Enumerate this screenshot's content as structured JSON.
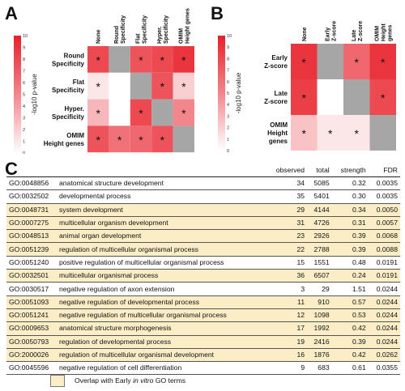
{
  "panels": {
    "a": "A",
    "b": "B",
    "c": "C"
  },
  "colors": {
    "high": "#e8202a",
    "mid": "#f2868c",
    "low": "#fde8ea",
    "none": "#ffffff",
    "gray": "#a6a6a6",
    "highlight": "#fbeec7"
  },
  "heatmap_a": {
    "cols": [
      [
        "None"
      ],
      [
        "Round",
        "Specificity"
      ],
      [
        "Flat",
        "Specificity"
      ],
      [
        "Hyper.",
        "Specificity"
      ],
      [
        "OMIM",
        "Height genes"
      ]
    ],
    "rows": [
      [
        "Round",
        "Specificity"
      ],
      [
        "Flat",
        "Specificity"
      ],
      [
        "Hyper.",
        "Specificity"
      ],
      [
        "OMIM",
        "Height genes"
      ]
    ],
    "ylabel": "-log10 p-value",
    "ticks": [
      "0",
      "1",
      "2",
      "3",
      "4",
      "5",
      "6",
      "7",
      "8",
      "9",
      "10"
    ],
    "values": [
      [
        8,
        null,
        7.5,
        8,
        9
      ],
      [
        1,
        0,
        null,
        7.5,
        2
      ],
      [
        3,
        0,
        8,
        null,
        5
      ],
      [
        7.5,
        6,
        6.5,
        7.5,
        null
      ]
    ],
    "stars": [
      [
        true,
        false,
        true,
        true,
        true
      ],
      [
        true,
        false,
        false,
        true,
        true
      ],
      [
        true,
        false,
        true,
        false,
        true
      ],
      [
        true,
        true,
        true,
        true,
        false
      ]
    ],
    "star": "*"
  },
  "heatmap_b": {
    "cols": [
      [
        "None"
      ],
      [
        "Early",
        "Z-score"
      ],
      [
        "Late",
        "Z-score"
      ],
      [
        "OMIM",
        "Height",
        "genes"
      ]
    ],
    "rows": [
      [
        "Early",
        "Z-score"
      ],
      [
        "Late",
        "Z-score"
      ],
      [
        "OMIM",
        "Height",
        "genes"
      ]
    ],
    "ylabel": "-log10 p-value",
    "ticks": [
      "0",
      "1",
      "2",
      "3",
      "4",
      "5",
      "6",
      "7",
      "8",
      "9",
      "10"
    ],
    "values": [
      [
        9,
        null,
        6.5,
        9
      ],
      [
        8.5,
        0,
        null,
        8
      ],
      [
        2.5,
        1,
        1,
        null
      ]
    ],
    "stars": [
      [
        true,
        false,
        true,
        true
      ],
      [
        true,
        false,
        false,
        true
      ],
      [
        true,
        true,
        true,
        false
      ]
    ],
    "star": "*"
  },
  "table": {
    "headers": {
      "term": "",
      "observed": "observed",
      "total": "total",
      "strength": "strength",
      "fdr": "FDR"
    },
    "rows": [
      {
        "id": "GO:0048856",
        "desc": "anatomical structure development",
        "observed": "34",
        "total": "5085",
        "strength": "0.32",
        "fdr": "0.0035",
        "hl": false
      },
      {
        "id": "GO:0032502",
        "desc": "developmental process",
        "observed": "35",
        "total": "5401",
        "strength": "0.30",
        "fdr": "0.0035",
        "hl": false
      },
      {
        "id": "GO:0048731",
        "desc": "system development",
        "observed": "29",
        "total": "4144",
        "strength": "0.34",
        "fdr": "0.0050",
        "hl": true
      },
      {
        "id": "GO:0007275",
        "desc": "multicellular organism development",
        "observed": "31",
        "total": "4726",
        "strength": "0.31",
        "fdr": "0.0057",
        "hl": true
      },
      {
        "id": "GO:0048513",
        "desc": "animal organ development",
        "observed": "23",
        "total": "2926",
        "strength": "0.39",
        "fdr": "0.0068",
        "hl": true
      },
      {
        "id": "GO:0051239",
        "desc": "regulation of multicellular organismal process",
        "observed": "22",
        "total": "2788",
        "strength": "0.39",
        "fdr": "0.0088",
        "hl": true
      },
      {
        "id": "GO:0051240",
        "desc": "positive regulation of multicellular organismal process",
        "observed": "15",
        "total": "1551",
        "strength": "0.48",
        "fdr": "0.0191",
        "hl": false
      },
      {
        "id": "GO:0032501",
        "desc": "multicellular organismal process",
        "observed": "36",
        "total": "6507",
        "strength": "0.24",
        "fdr": "0.0191",
        "hl": true
      },
      {
        "id": "GO:0030517",
        "desc": "negative regulation of axon extension",
        "observed": "3",
        "total": "29",
        "strength": "1.51",
        "fdr": "0.0244",
        "hl": false
      },
      {
        "id": "GO:0051093",
        "desc": "negative regulation of developmental process",
        "observed": "11",
        "total": "910",
        "strength": "0.57",
        "fdr": "0.0244",
        "hl": true
      },
      {
        "id": "GO:0051241",
        "desc": "negative regulation of multicellular organismal process",
        "observed": "12",
        "total": "1098",
        "strength": "0.53",
        "fdr": "0.0244",
        "hl": true
      },
      {
        "id": "GO:0009653",
        "desc": "anatomical structure morphogenesis",
        "observed": "17",
        "total": "1992",
        "strength": "0.42",
        "fdr": "0.0244",
        "hl": true
      },
      {
        "id": "GO:0050793",
        "desc": "regulation of developmental process",
        "observed": "19",
        "total": "2416",
        "strength": "0.39",
        "fdr": "0.0244",
        "hl": true
      },
      {
        "id": "GO:2000026",
        "desc": "regulation of multicellular organismal development",
        "observed": "16",
        "total": "1876",
        "strength": "0.42",
        "fdr": "0.0262",
        "hl": true
      },
      {
        "id": "GO:0045596",
        "desc": "negative regulation of cell differentiation",
        "observed": "9",
        "total": "683",
        "strength": "0.61",
        "fdr": "0.0355",
        "hl": false
      }
    ]
  },
  "legend": {
    "pre": "Overlap with Early ",
    "italic": "in vitro",
    "post": " GO terms"
  }
}
